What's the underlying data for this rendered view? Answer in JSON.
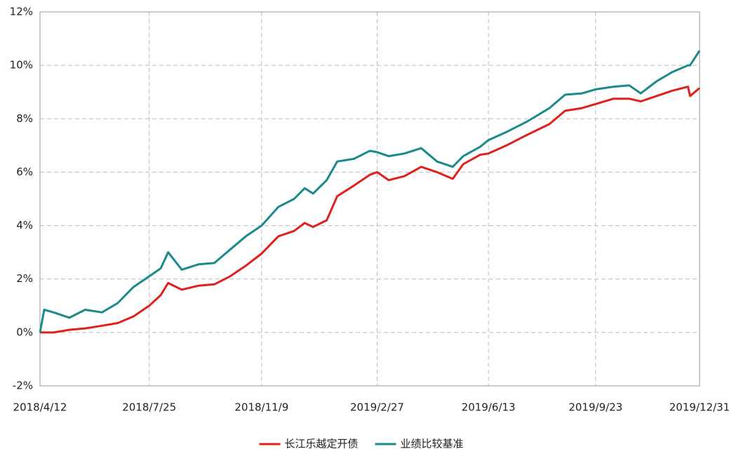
{
  "chart_data": {
    "type": "line",
    "x": [
      "2018/4/12",
      "2018/4/16",
      "2018/4/25",
      "2018/5/10",
      "2018/5/25",
      "2018/6/10",
      "2018/6/25",
      "2018/7/10",
      "2018/7/25",
      "2018/8/5",
      "2018/8/12",
      "2018/8/25",
      "2018/9/10",
      "2018/9/25",
      "2018/10/10",
      "2018/10/25",
      "2018/11/9",
      "2018/11/25",
      "2018/12/10",
      "2018/12/20",
      "2018/12/28",
      "2019/1/10",
      "2019/1/20",
      "2019/2/5",
      "2019/2/20",
      "2019/2/27",
      "2019/3/10",
      "2019/3/25",
      "2019/4/10",
      "2019/4/25",
      "2019/5/10",
      "2019/5/20",
      "2019/6/5",
      "2019/6/13",
      "2019/6/30",
      "2019/7/20",
      "2019/8/10",
      "2019/8/25",
      "2019/9/10",
      "2019/9/23",
      "2019/10/10",
      "2019/10/25",
      "2019/11/5",
      "2019/11/20",
      "2019/12/5",
      "2019/12/20",
      "2019/12/22",
      "2019/12/31"
    ],
    "series": [
      {
        "name": "长江乐越定开债",
        "color": "#e0201c",
        "values": [
          0,
          0,
          0,
          0.1,
          0.15,
          0.25,
          0.35,
          0.6,
          1.0,
          1.4,
          1.85,
          1.6,
          1.75,
          1.8,
          2.1,
          2.5,
          2.95,
          3.6,
          3.8,
          4.1,
          3.95,
          4.2,
          5.1,
          5.5,
          5.9,
          6.0,
          5.7,
          5.85,
          6.2,
          6.0,
          5.75,
          6.3,
          6.65,
          6.7,
          7.0,
          7.4,
          7.8,
          8.3,
          8.4,
          8.55,
          8.75,
          8.75,
          8.65,
          8.85,
          9.05,
          9.2,
          8.85,
          9.15
        ]
      },
      {
        "name": "业绩比较基准",
        "color": "#1a8a8a",
        "values": [
          0,
          0.85,
          0.75,
          0.55,
          0.85,
          0.75,
          1.1,
          1.7,
          2.1,
          2.4,
          3.0,
          2.35,
          2.55,
          2.6,
          3.1,
          3.6,
          4.0,
          4.7,
          5.0,
          5.4,
          5.2,
          5.7,
          6.4,
          6.5,
          6.8,
          6.75,
          6.6,
          6.7,
          6.9,
          6.4,
          6.2,
          6.6,
          6.95,
          7.2,
          7.5,
          7.9,
          8.4,
          8.9,
          8.95,
          9.1,
          9.2,
          9.25,
          8.95,
          9.4,
          9.75,
          10.0,
          10.0,
          10.55
        ]
      }
    ],
    "xlim": [
      "2018/4/12",
      "2019/12/31"
    ],
    "xticks": [
      "2018/4/12",
      "2018/7/25",
      "2018/11/9",
      "2019/2/27",
      "2019/6/13",
      "2019/9/23",
      "2019/12/31"
    ],
    "ylim": [
      -2,
      12
    ],
    "yticks": [
      {
        "value": -2,
        "label": "-2%"
      },
      {
        "value": 0,
        "label": "0%"
      },
      {
        "value": 2,
        "label": "2%"
      },
      {
        "value": 4,
        "label": "4%"
      },
      {
        "value": 6,
        "label": "6%"
      },
      {
        "value": 8,
        "label": "8%"
      },
      {
        "value": 10,
        "label": "10%"
      },
      {
        "value": 12,
        "label": "12%"
      }
    ],
    "grid": true,
    "legend": "bottom"
  }
}
